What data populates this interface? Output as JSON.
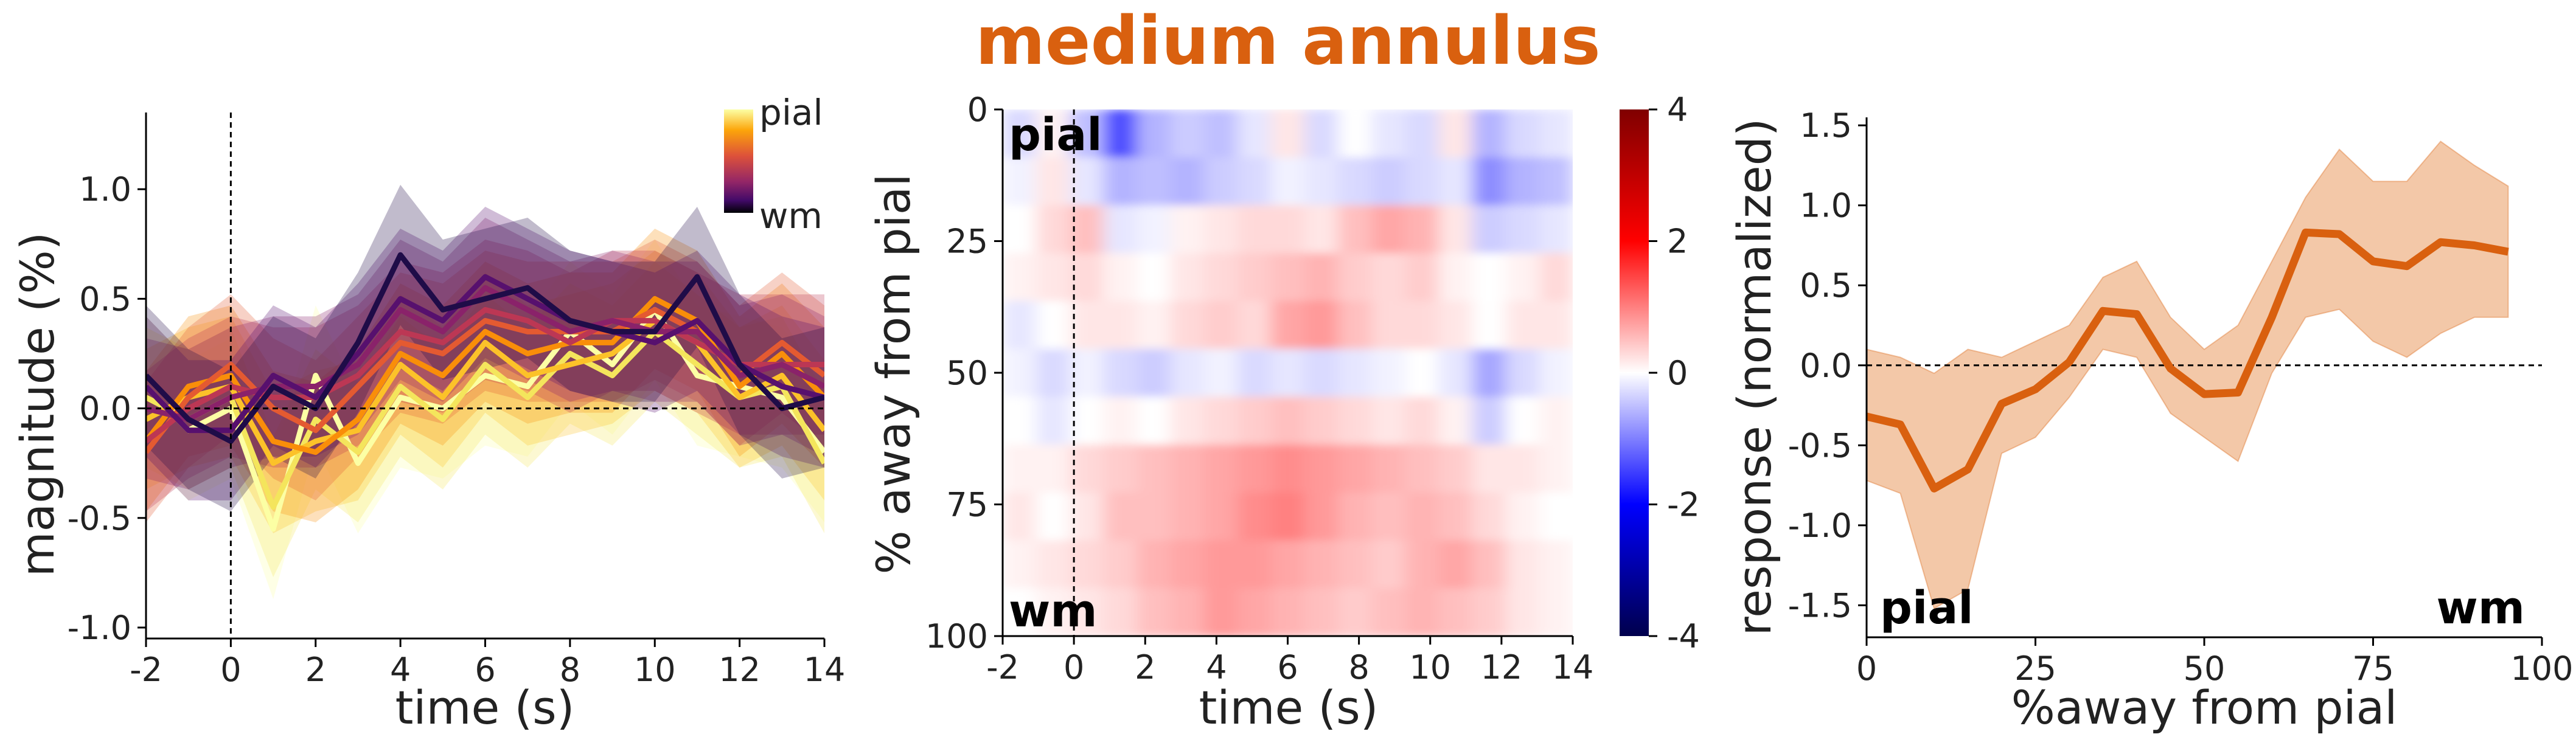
{
  "title": "medium annulus",
  "colors": {
    "title": "#d9600f",
    "profile": "#d9600f",
    "profile_band": "#f3c8a8"
  },
  "chart_data": [
    {
      "type": "line",
      "xlabel": "time (s)",
      "ylabel": "magnitude (%)",
      "xlim": [
        -2,
        14
      ],
      "ylim": [
        -1.05,
        1.35
      ],
      "xticks": [
        "-2",
        "0",
        "2",
        "4",
        "6",
        "8",
        "10",
        "12",
        "14"
      ],
      "yticks": [
        "-1.0",
        "-0.5",
        "0.0",
        "0.5",
        "1.0"
      ],
      "legend": {
        "top": "pial",
        "bottom": "wm",
        "placement": "top-right",
        "colormap": "inferno"
      },
      "x": [
        -2,
        -1,
        0,
        1,
        2,
        3,
        4,
        5,
        6,
        7,
        8,
        9,
        10,
        11,
        12,
        13,
        14
      ],
      "series": [
        {
          "depth": 0.0,
          "color": "#fcffa4",
          "values": [
            0.1,
            -0.1,
            0.0,
            -0.55,
            0.15,
            -0.25,
            0.05,
            0.0,
            0.15,
            0.1,
            0.35,
            0.2,
            0.45,
            0.15,
            0.1,
            0.05,
            -0.2
          ]
        },
        {
          "depth": 0.1,
          "color": "#f4e55c",
          "values": [
            0.05,
            -0.05,
            0.05,
            -0.45,
            -0.05,
            -0.2,
            0.1,
            -0.05,
            0.2,
            0.05,
            0.25,
            0.15,
            0.35,
            0.2,
            0.05,
            0.1,
            -0.25
          ]
        },
        {
          "depth": 0.2,
          "color": "#fcc229",
          "values": [
            -0.05,
            0.05,
            0.1,
            -0.25,
            -0.15,
            -0.1,
            0.2,
            0.05,
            0.3,
            0.15,
            0.2,
            0.25,
            0.4,
            0.3,
            0.05,
            0.15,
            -0.1
          ]
        },
        {
          "depth": 0.3,
          "color": "#f98e09",
          "values": [
            -0.15,
            0.1,
            0.15,
            -0.15,
            -0.2,
            -0.05,
            0.25,
            0.15,
            0.35,
            0.25,
            0.3,
            0.3,
            0.5,
            0.4,
            0.1,
            0.25,
            0.05
          ]
        },
        {
          "depth": 0.4,
          "color": "#e45a31",
          "values": [
            -0.2,
            0.05,
            0.2,
            0.0,
            -0.1,
            0.1,
            0.3,
            0.25,
            0.4,
            0.35,
            0.35,
            0.35,
            0.45,
            0.35,
            0.15,
            0.3,
            0.15
          ]
        },
        {
          "depth": 0.5,
          "color": "#bc3754",
          "values": [
            -0.15,
            0.0,
            0.1,
            0.05,
            0.05,
            0.15,
            0.35,
            0.3,
            0.45,
            0.4,
            0.3,
            0.4,
            0.4,
            0.3,
            0.2,
            0.2,
            0.2
          ]
        },
        {
          "depth": 0.6,
          "color": "#8a226a",
          "values": [
            0.0,
            -0.05,
            0.05,
            0.1,
            0.1,
            0.2,
            0.45,
            0.35,
            0.55,
            0.45,
            0.35,
            0.4,
            0.35,
            0.35,
            0.15,
            0.2,
            0.1
          ]
        },
        {
          "depth": 0.7,
          "color": "#57106e",
          "values": [
            0.1,
            -0.1,
            -0.1,
            0.15,
            0.05,
            0.25,
            0.5,
            0.4,
            0.6,
            0.5,
            0.4,
            0.35,
            0.3,
            0.4,
            0.2,
            0.1,
            0.05
          ]
        },
        {
          "depth": 0.85,
          "color": "#1f0c48",
          "values": [
            0.15,
            -0.05,
            -0.15,
            0.1,
            0.0,
            0.3,
            0.7,
            0.45,
            0.5,
            0.55,
            0.4,
            0.35,
            0.35,
            0.6,
            0.2,
            0.0,
            0.05
          ]
        }
      ]
    },
    {
      "type": "heatmap",
      "xlabel": "time (s)",
      "ylabel": "% away from pial",
      "xlim": [
        -2,
        14
      ],
      "ylim": [
        100,
        0
      ],
      "xticks": [
        "-2",
        "0",
        "2",
        "4",
        "6",
        "8",
        "10",
        "12",
        "14"
      ],
      "yticks": [
        "0",
        "25",
        "50",
        "75",
        "100"
      ],
      "annotations": {
        "top": "pial",
        "bottom": "wm"
      },
      "colorbar": {
        "range": [
          -4,
          4
        ],
        "ticks": [
          "4",
          "2",
          "0",
          "-2",
          "-4"
        ],
        "colormap": "seismic"
      },
      "depths": [
        0,
        10,
        20,
        30,
        40,
        50,
        60,
        70,
        80,
        90,
        100
      ],
      "times": [
        -2,
        -1,
        0,
        1,
        2,
        3,
        4,
        5,
        6,
        7,
        8,
        9,
        10,
        11,
        12,
        13,
        14
      ],
      "values": [
        [
          -0.3,
          0.1,
          -0.5,
          -1.4,
          -0.6,
          -0.4,
          -0.5,
          -0.2,
          0.2,
          -0.3,
          0.0,
          -0.2,
          -0.3,
          0.2,
          -0.6,
          -0.3,
          -0.2
        ],
        [
          -0.1,
          0.2,
          -0.2,
          -0.6,
          -0.5,
          -0.6,
          -0.4,
          -0.3,
          -0.1,
          -0.2,
          -0.3,
          -0.4,
          -0.3,
          -0.2,
          -0.9,
          -0.6,
          -0.5
        ],
        [
          0.0,
          0.3,
          0.5,
          -0.2,
          -0.1,
          0.1,
          0.2,
          0.3,
          0.3,
          0.2,
          0.5,
          0.7,
          0.6,
          0.2,
          -0.4,
          -0.3,
          -0.2
        ],
        [
          0.1,
          0.2,
          0.3,
          0.1,
          0.0,
          0.2,
          0.3,
          0.4,
          0.5,
          0.6,
          0.4,
          0.3,
          0.4,
          0.1,
          0.0,
          0.1,
          0.3
        ],
        [
          -0.2,
          0.0,
          0.2,
          0.2,
          0.1,
          0.3,
          0.4,
          0.3,
          0.7,
          0.8,
          0.5,
          0.3,
          0.3,
          0.2,
          0.0,
          0.2,
          0.2
        ],
        [
          -0.1,
          -0.3,
          -0.1,
          -0.3,
          -0.4,
          -0.2,
          -0.1,
          -0.3,
          -0.2,
          -0.3,
          -0.2,
          -0.1,
          0.0,
          -0.2,
          -0.7,
          -0.3,
          -0.1
        ],
        [
          0.0,
          -0.2,
          0.0,
          0.1,
          0.0,
          0.2,
          0.3,
          0.4,
          0.5,
          0.4,
          0.3,
          0.2,
          0.3,
          0.1,
          -0.4,
          0.0,
          0.1
        ],
        [
          0.1,
          0.1,
          0.3,
          0.4,
          0.5,
          0.6,
          0.7,
          0.8,
          0.9,
          0.8,
          0.7,
          0.6,
          0.5,
          0.4,
          0.2,
          0.2,
          0.1
        ],
        [
          0.2,
          0.0,
          0.2,
          0.5,
          0.5,
          0.6,
          0.7,
          0.9,
          1.0,
          0.8,
          0.6,
          0.5,
          0.6,
          0.5,
          0.3,
          0.1,
          0.0
        ],
        [
          0.1,
          0.2,
          0.3,
          0.4,
          0.6,
          0.7,
          0.8,
          0.8,
          0.7,
          0.6,
          0.5,
          0.4,
          0.6,
          0.7,
          0.5,
          0.2,
          0.1
        ],
        [
          0.0,
          0.1,
          0.2,
          0.3,
          0.5,
          0.6,
          0.8,
          0.7,
          0.6,
          0.5,
          0.4,
          0.5,
          0.6,
          0.5,
          0.4,
          0.2,
          0.1
        ]
      ]
    },
    {
      "type": "line",
      "xlabel": "%away from pial",
      "ylabel": "response (normalized)",
      "xlim": [
        0,
        100
      ],
      "ylim": [
        -1.7,
        1.55
      ],
      "xticks": [
        "0",
        "25",
        "50",
        "75",
        "100"
      ],
      "yticks": [
        "-1.5",
        "-1.0",
        "-0.5",
        "0.0",
        "0.5",
        "1.0",
        "1.5"
      ],
      "annotations": {
        "left": "pial",
        "right": "wm"
      },
      "x": [
        0,
        5,
        10,
        15,
        20,
        25,
        30,
        35,
        40,
        45,
        50,
        55,
        60,
        65,
        70,
        75,
        80,
        85,
        90,
        95
      ],
      "values": [
        -0.32,
        -0.37,
        -0.77,
        -0.65,
        -0.24,
        -0.15,
        0.02,
        0.34,
        0.32,
        -0.02,
        -0.18,
        -0.17,
        0.3,
        0.83,
        0.82,
        0.65,
        0.62,
        0.77,
        0.75,
        0.71
      ],
      "lower": [
        -0.72,
        -0.8,
        -1.52,
        -1.4,
        -0.55,
        -0.45,
        -0.2,
        0.1,
        0.05,
        -0.3,
        -0.45,
        -0.6,
        -0.05,
        0.3,
        0.35,
        0.15,
        0.05,
        0.2,
        0.3,
        0.3
      ],
      "upper": [
        0.1,
        0.05,
        -0.05,
        0.1,
        0.05,
        0.15,
        0.25,
        0.55,
        0.65,
        0.3,
        0.1,
        0.25,
        0.65,
        1.05,
        1.35,
        1.15,
        1.15,
        1.4,
        1.25,
        1.12
      ]
    }
  ]
}
